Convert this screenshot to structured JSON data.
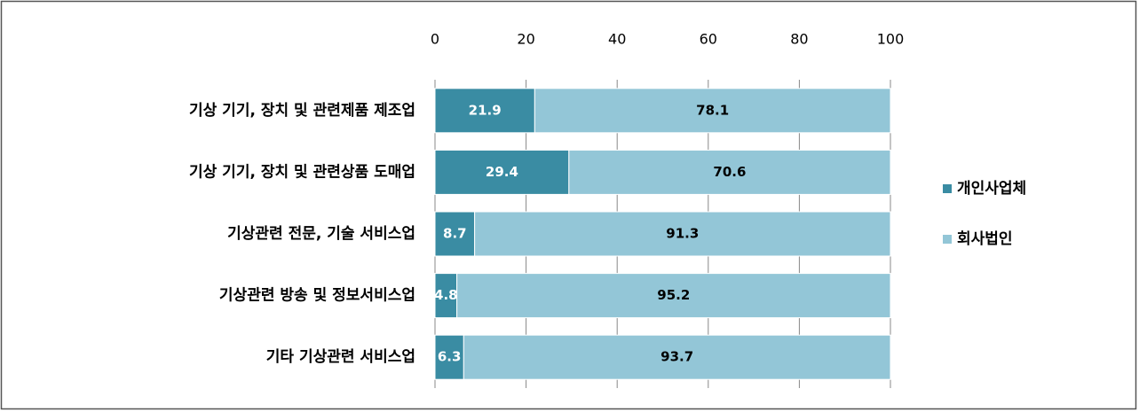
{
  "chart_data": {
    "type": "stacked_barh",
    "categories": [
      "기상 기기, 장치 및 관련제품 제조업",
      "기상 기기, 장치 및 관련상품 도매업",
      "기상관련 전문, 기술 서비스업",
      "기상관련 방송 및 정보서비스업",
      "기타 기상관련 서비스업"
    ],
    "series": [
      {
        "name": "개인사업체",
        "color": "#3a8ca3",
        "values": [
          21.9,
          29.4,
          8.7,
          4.8,
          6.3
        ]
      },
      {
        "name": "회사법인",
        "color": "#93c6d7",
        "values": [
          78.1,
          70.6,
          91.3,
          95.2,
          93.7
        ]
      }
    ],
    "xlim": [
      0,
      100
    ],
    "xticks": [
      0,
      20,
      40,
      60,
      80,
      100
    ],
    "grid": true,
    "legend": "right"
  }
}
